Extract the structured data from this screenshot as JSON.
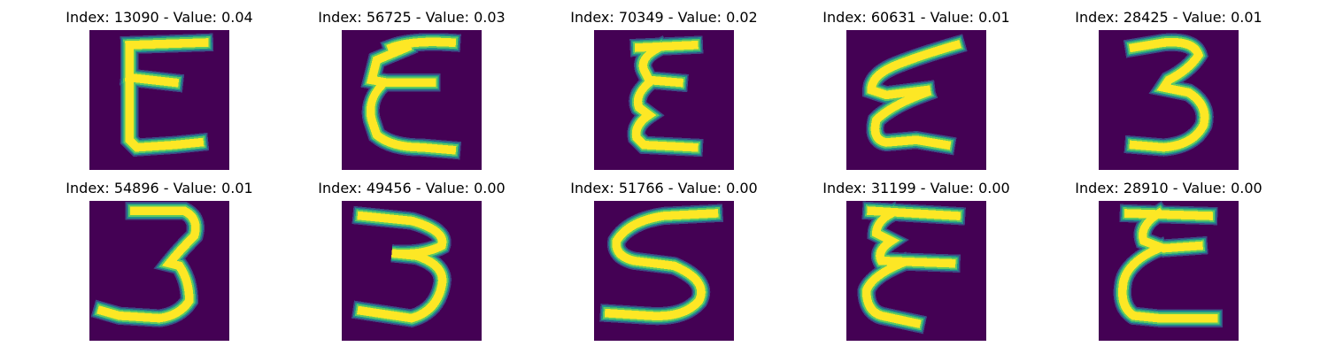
{
  "colors": {
    "background": "#440154",
    "stroke_core": "#fde725",
    "stroke_mid": "#5ec962",
    "stroke_outer": "#21918c",
    "stroke_edge": "#3b528b"
  },
  "panels": [
    {
      "title": "Index: 13090 - Value: 0.04",
      "index": 13090,
      "value": 0.04,
      "digit_shape": "E"
    },
    {
      "title": "Index: 56725 - Value: 0.03",
      "index": 56725,
      "value": 0.03,
      "digit_shape": "E"
    },
    {
      "title": "Index: 70349 - Value: 0.02",
      "index": 70349,
      "value": 0.02,
      "digit_shape": "E"
    },
    {
      "title": "Index: 60631 - Value: 0.01",
      "index": 60631,
      "value": 0.01,
      "digit_shape": "E"
    },
    {
      "title": "Index: 28425 - Value: 0.01",
      "index": 28425,
      "value": 0.01,
      "digit_shape": "3"
    },
    {
      "title": "Index: 54896 - Value: 0.01",
      "index": 54896,
      "value": 0.01,
      "digit_shape": "3"
    },
    {
      "title": "Index: 49456 - Value: 0.00",
      "index": 49456,
      "value": 0.0,
      "digit_shape": "3"
    },
    {
      "title": "Index: 51766 - Value: 0.00",
      "index": 51766,
      "value": 0.0,
      "digit_shape": "S"
    },
    {
      "title": "Index: 31199 - Value: 0.00",
      "index": 31199,
      "value": 0.0,
      "digit_shape": "E"
    },
    {
      "title": "Index: 28910 - Value: 0.00",
      "index": 28910,
      "value": 0.0,
      "digit_shape": "E"
    }
  ]
}
